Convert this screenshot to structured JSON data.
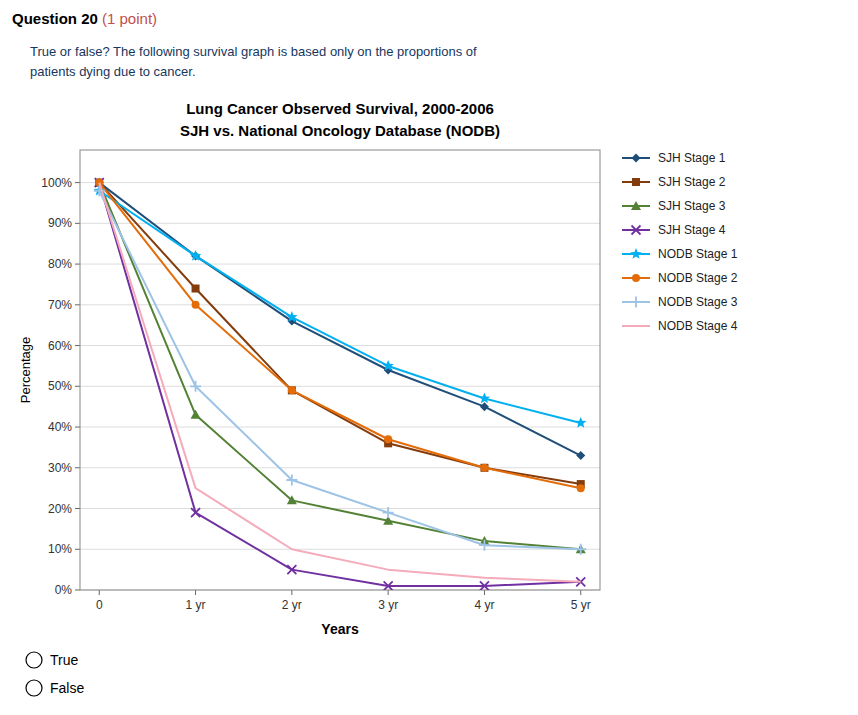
{
  "chart_data": {
    "type": "line",
    "title": "Lung Cancer Observed Survival, 2000-2006",
    "subtitle": "SJH vs. National Oncology Database (NODB)",
    "x_label": "Years",
    "y_label": "Percentage",
    "annotations": [
      "Question 20",
      " (1 point)",
      "True or false? The following survival graph is based only on the proportions of",
      "patients dying due to cancer.",
      "True",
      "False"
    ],
    "x": [
      0,
      1,
      2,
      3,
      4,
      5
    ],
    "xlim": [
      -0.2,
      5.2
    ],
    "xticks": [
      0,
      {
        "value": 1,
        "label": "1 yr"
      },
      {
        "value": 2,
        "label": "2 yr"
      },
      {
        "value": 3,
        "label": "3 yr"
      },
      {
        "value": 4,
        "label": "4 yr"
      },
      {
        "value": 5,
        "label": "5 yr"
      }
    ],
    "ylim": [
      0,
      108
    ],
    "yticks": [
      {
        "value": 0,
        "label": "0%"
      },
      {
        "value": 10,
        "label": "10%"
      },
      {
        "value": 20,
        "label": "20%"
      },
      {
        "value": 30,
        "label": "30%"
      },
      {
        "value": 40,
        "label": "40%"
      },
      {
        "value": 50,
        "label": "50%"
      },
      {
        "value": 60,
        "label": "60%"
      },
      {
        "value": 70,
        "label": "70%"
      },
      {
        "value": 80,
        "label": "80%"
      },
      {
        "value": 90,
        "label": "90%"
      },
      {
        "value": 100,
        "label": "100%"
      }
    ],
    "grid": true,
    "legend": "right",
    "series": [
      {
        "name": "SJH Stage 1",
        "color": "#1F4E79",
        "marker": "diamond",
        "values": [
          100,
          82,
          66,
          54,
          45,
          33
        ]
      },
      {
        "name": "SJH Stage 2",
        "color": "#843C0C",
        "marker": "square",
        "values": [
          100,
          74,
          49,
          36,
          30,
          26
        ]
      },
      {
        "name": "SJH Stage 3",
        "color": "#538135",
        "marker": "triangle",
        "values": [
          100,
          43,
          22,
          17,
          12,
          10
        ]
      },
      {
        "name": "SJH Stage 4",
        "color": "#7030A0",
        "marker": "x",
        "values": [
          100,
          19,
          5,
          1,
          1,
          2
        ]
      },
      {
        "name": "NODB Stage 1",
        "color": "#00B0F0",
        "marker": "star",
        "values": [
          98,
          82,
          67,
          55,
          47,
          41
        ]
      },
      {
        "name": "NODB Stage 2",
        "color": "#E36C09",
        "marker": "circle",
        "values": [
          100,
          70,
          49,
          37,
          30,
          25
        ]
      },
      {
        "name": "NODB Stage 3",
        "color": "#9DC3E6",
        "marker": "plus",
        "values": [
          98,
          50,
          27,
          19,
          11,
          10
        ]
      },
      {
        "name": "NODB Stage 4",
        "color": "#F4ABBA",
        "marker": "none",
        "values": [
          100,
          25,
          10,
          5,
          3,
          2
        ]
      }
    ]
  }
}
